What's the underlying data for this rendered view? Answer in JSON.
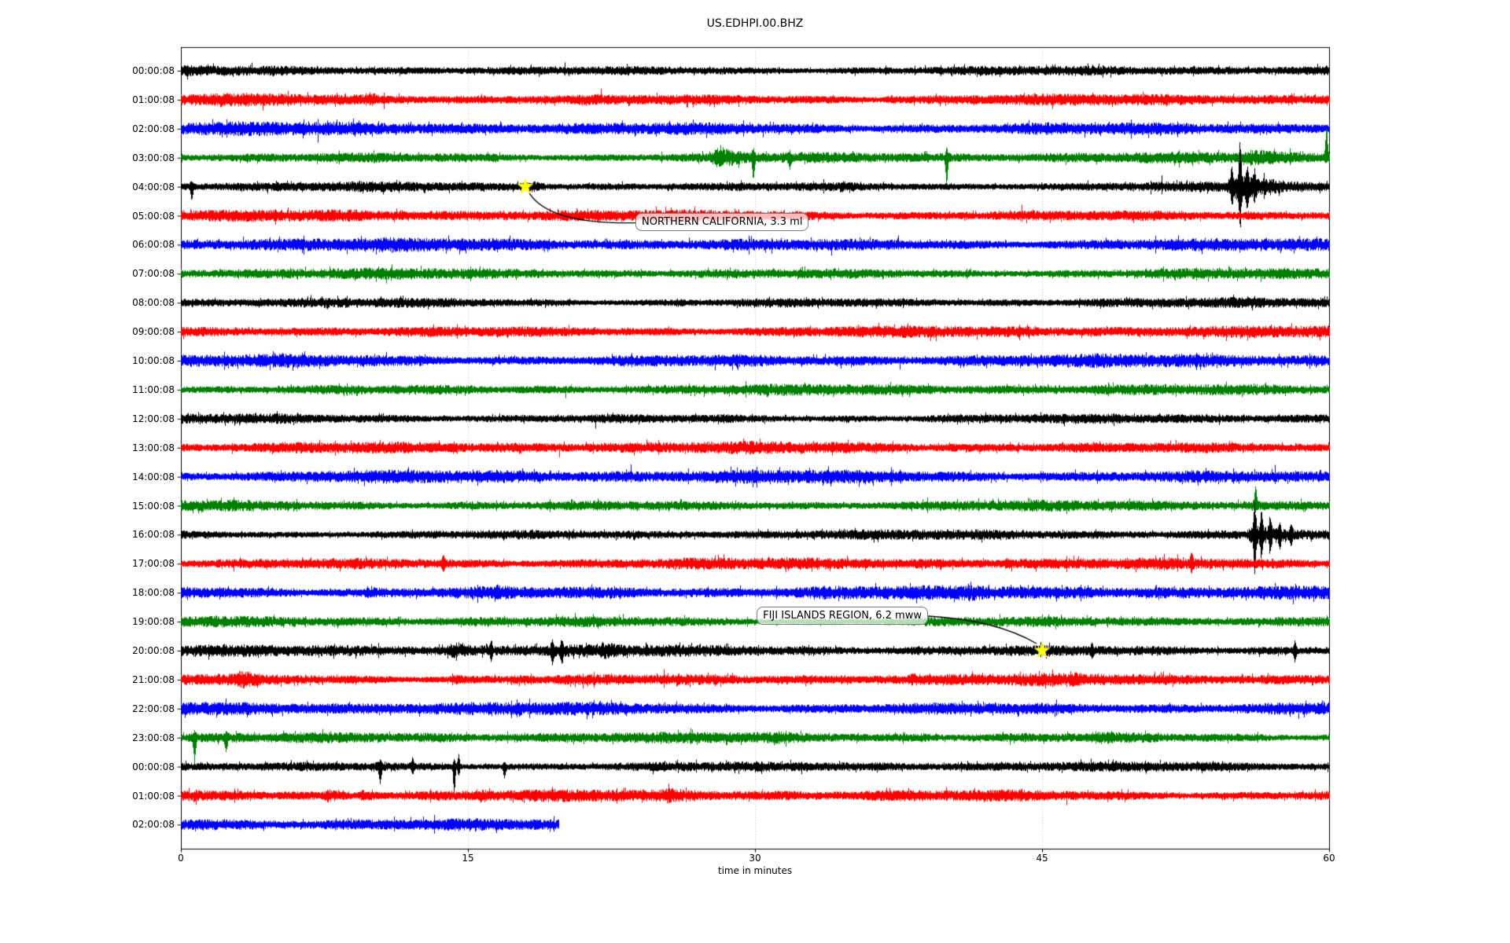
{
  "chart_data": {
    "type": "line",
    "subtype": "seismogram-dayplot",
    "title": "US.EDHPI.00.BHZ",
    "xlabel": "time in minutes",
    "x_ticks": [
      0,
      15,
      30,
      45,
      60
    ],
    "grid_minutes": [
      15,
      30,
      45
    ],
    "x_range_minutes": [
      0,
      60
    ],
    "grid_color": "#b0b0b0",
    "trace_color_cycle": [
      "#000000",
      "#ff0000",
      "#0000ff",
      "#008000"
    ],
    "rows": [
      {
        "label": "00:00:08",
        "color": "#000000",
        "amp": 3.8,
        "seed": 101,
        "end_min": 60,
        "events": []
      },
      {
        "label": "01:00:08",
        "color": "#ff0000",
        "amp": 4.6,
        "seed": 102,
        "end_min": 60,
        "events": [
          {
            "kind": "burst",
            "t": 9.8,
            "dur": 0.7,
            "amp": 1.9
          },
          {
            "kind": "burst",
            "t": 36.8,
            "dur": 1.0,
            "amp": 1.8
          }
        ]
      },
      {
        "label": "02:00:08",
        "color": "#0000ff",
        "amp": 5.2,
        "seed": 103,
        "end_min": 60,
        "events": []
      },
      {
        "label": "03:00:08",
        "color": "#008000",
        "amp": 4.2,
        "seed": 104,
        "end_min": 60,
        "events": [
          {
            "kind": "burst",
            "t": 27.7,
            "dur": 2.6,
            "amp": 2.6
          },
          {
            "kind": "spike",
            "t": 29.9,
            "up": 8,
            "down": 26,
            "w": 3
          },
          {
            "kind": "spike",
            "t": 31.8,
            "up": 5,
            "down": 12,
            "w": 3
          },
          {
            "kind": "spike",
            "t": 40.0,
            "up": 4,
            "down": 32,
            "w": 3
          },
          {
            "kind": "burst",
            "t": 55.5,
            "dur": 3.0,
            "amp": 1.7
          },
          {
            "kind": "spike",
            "t": 59.85,
            "up": 37,
            "down": 4,
            "w": 3
          }
        ]
      },
      {
        "label": "04:00:08",
        "color": "#000000",
        "amp": 3.8,
        "seed": 105,
        "end_min": 60,
        "events": [
          {
            "kind": "spike",
            "t": 0.55,
            "up": 5,
            "down": 16,
            "w": 3
          },
          {
            "kind": "burst",
            "t": 18.0,
            "dur": 1.6,
            "amp": 2.3
          },
          {
            "kind": "burst",
            "t": 25.4,
            "dur": 0.6,
            "amp": 1.4
          },
          {
            "kind": "burst",
            "t": 34.4,
            "dur": 0.8,
            "amp": 1.5
          },
          {
            "kind": "burst",
            "t": 54.6,
            "dur": 4.0,
            "amp": 3.5
          },
          {
            "kind": "spike",
            "t": 54.9,
            "up": 16,
            "down": 14,
            "w": 3
          },
          {
            "kind": "spike",
            "t": 55.33,
            "up": 44,
            "down": 48,
            "w": 3
          },
          {
            "kind": "spike",
            "t": 55.7,
            "up": 18,
            "down": 20,
            "w": 3
          },
          {
            "kind": "spike",
            "t": 56.1,
            "up": 12,
            "down": 12,
            "w": 3
          }
        ]
      },
      {
        "label": "05:00:08",
        "color": "#ff0000",
        "amp": 4.6,
        "seed": 106,
        "end_min": 60,
        "events": []
      },
      {
        "label": "06:00:08",
        "color": "#0000ff",
        "amp": 5.2,
        "seed": 107,
        "end_min": 60,
        "events": []
      },
      {
        "label": "07:00:08",
        "color": "#008000",
        "amp": 4.2,
        "seed": 108,
        "end_min": 60,
        "events": []
      },
      {
        "label": "08:00:08",
        "color": "#000000",
        "amp": 3.8,
        "seed": 109,
        "end_min": 60,
        "events": [
          {
            "kind": "burst",
            "t": 25.7,
            "dur": 1.0,
            "amp": 1.5
          }
        ]
      },
      {
        "label": "09:00:08",
        "color": "#ff0000",
        "amp": 4.6,
        "seed": 110,
        "end_min": 60,
        "events": []
      },
      {
        "label": "10:00:08",
        "color": "#0000ff",
        "amp": 5.2,
        "seed": 111,
        "end_min": 60,
        "events": []
      },
      {
        "label": "11:00:08",
        "color": "#008000",
        "amp": 4.2,
        "seed": 112,
        "end_min": 60,
        "events": []
      },
      {
        "label": "12:00:08",
        "color": "#000000",
        "amp": 3.8,
        "seed": 113,
        "end_min": 60,
        "events": []
      },
      {
        "label": "13:00:08",
        "color": "#ff0000",
        "amp": 4.6,
        "seed": 114,
        "end_min": 60,
        "events": []
      },
      {
        "label": "14:00:08",
        "color": "#0000ff",
        "amp": 5.2,
        "seed": 115,
        "end_min": 60,
        "events": []
      },
      {
        "label": "15:00:08",
        "color": "#008000",
        "amp": 4.2,
        "seed": 116,
        "end_min": 60,
        "events": [
          {
            "kind": "spike",
            "t": 56.15,
            "up": 24,
            "down": 4,
            "w": 3
          }
        ]
      },
      {
        "label": "16:00:08",
        "color": "#000000",
        "amp": 3.8,
        "seed": 117,
        "end_min": 60,
        "events": [
          {
            "kind": "burst",
            "t": 55.7,
            "dur": 3.2,
            "amp": 3.2
          },
          {
            "kind": "spike",
            "t": 56.1,
            "up": 30,
            "down": 46,
            "w": 3
          },
          {
            "kind": "spike",
            "t": 56.45,
            "up": 22,
            "down": 24,
            "w": 3
          },
          {
            "kind": "spike",
            "t": 56.9,
            "up": 16,
            "down": 18,
            "w": 3
          },
          {
            "kind": "spike",
            "t": 57.4,
            "up": 12,
            "down": 14,
            "w": 3
          },
          {
            "kind": "spike",
            "t": 58.0,
            "up": 9,
            "down": 10,
            "w": 3
          }
        ]
      },
      {
        "label": "17:00:08",
        "color": "#ff0000",
        "amp": 4.6,
        "seed": 118,
        "end_min": 60,
        "events": [
          {
            "kind": "spike",
            "t": 13.7,
            "up": 8,
            "down": 9,
            "w": 3
          },
          {
            "kind": "burst",
            "t": 43.0,
            "dur": 0.6,
            "amp": 1.4
          },
          {
            "kind": "spike",
            "t": 52.8,
            "up": 9,
            "down": 7,
            "w": 3
          }
        ]
      },
      {
        "label": "18:00:08",
        "color": "#0000ff",
        "amp": 5.4,
        "seed": 119,
        "end_min": 60,
        "events": [
          {
            "kind": "burst",
            "t": 9.6,
            "dur": 1.0,
            "amp": 1.5
          },
          {
            "kind": "burst",
            "t": 16.4,
            "dur": 1.0,
            "amp": 1.4
          },
          {
            "kind": "burst",
            "t": 33.0,
            "dur": 1.2,
            "amp": 1.35
          },
          {
            "kind": "burst",
            "t": 41.0,
            "dur": 1.0,
            "amp": 1.3
          },
          {
            "kind": "burst",
            "t": 47.0,
            "dur": 1.0,
            "amp": 1.3
          }
        ]
      },
      {
        "label": "19:00:08",
        "color": "#008000",
        "amp": 4.2,
        "seed": 120,
        "end_min": 60,
        "events": []
      },
      {
        "label": "20:00:08",
        "color": "#000000",
        "amp": 4.6,
        "seed": 121,
        "end_min": 60,
        "events": [
          {
            "kind": "burst",
            "t": 13.8,
            "dur": 2.2,
            "amp": 1.7
          },
          {
            "kind": "spike",
            "t": 16.2,
            "up": 9,
            "down": 11,
            "w": 3
          },
          {
            "kind": "spike",
            "t": 19.4,
            "up": 10,
            "down": 12,
            "w": 3
          },
          {
            "kind": "spike",
            "t": 19.9,
            "up": 8,
            "down": 14,
            "w": 3
          },
          {
            "kind": "burst",
            "t": 21.8,
            "dur": 1.6,
            "amp": 1.5
          },
          {
            "kind": "spike",
            "t": 47.6,
            "up": 6,
            "down": 8,
            "w": 3
          },
          {
            "kind": "spike",
            "t": 58.2,
            "up": 10,
            "down": 12,
            "w": 3
          }
        ]
      },
      {
        "label": "21:00:08",
        "color": "#ff0000",
        "amp": 4.6,
        "seed": 122,
        "end_min": 60,
        "events": [
          {
            "kind": "burst",
            "t": 2.8,
            "dur": 1.6,
            "amp": 1.9
          },
          {
            "kind": "burst",
            "t": 14.1,
            "dur": 1.2,
            "amp": 1.7
          },
          {
            "kind": "burst",
            "t": 17.2,
            "dur": 1.0,
            "amp": 1.6
          },
          {
            "kind": "burst",
            "t": 25.8,
            "dur": 1.0,
            "amp": 1.6
          },
          {
            "kind": "burst",
            "t": 32.5,
            "dur": 0.8,
            "amp": 1.5
          },
          {
            "kind": "burst",
            "t": 38.0,
            "dur": 1.0,
            "amp": 1.5
          },
          {
            "kind": "burst",
            "t": 46.4,
            "dur": 0.8,
            "amp": 1.5
          }
        ]
      },
      {
        "label": "22:00:08",
        "color": "#0000ff",
        "amp": 5.2,
        "seed": 123,
        "end_min": 60,
        "events": []
      },
      {
        "label": "23:00:08",
        "color": "#008000",
        "amp": 4.2,
        "seed": 124,
        "end_min": 60,
        "events": [
          {
            "kind": "spike",
            "t": 0.7,
            "up": 4,
            "down": 30,
            "w": 3
          },
          {
            "kind": "spike",
            "t": 2.35,
            "up": 3,
            "down": 16,
            "w": 3
          },
          {
            "kind": "burst",
            "t": 31.0,
            "dur": 1.0,
            "amp": 1.4
          },
          {
            "kind": "burst",
            "t": 38.5,
            "dur": 1.2,
            "amp": 1.5
          },
          {
            "kind": "burst",
            "t": 47.5,
            "dur": 2.5,
            "amp": 1.5
          }
        ]
      },
      {
        "label": "00:00:08",
        "color": "#000000",
        "amp": 3.8,
        "seed": 125,
        "end_min": 60,
        "events": [
          {
            "kind": "burst",
            "t": 9.9,
            "dur": 1.2,
            "amp": 1.5
          },
          {
            "kind": "spike",
            "t": 10.4,
            "up": 5,
            "down": 18,
            "w": 3
          },
          {
            "kind": "spike",
            "t": 12.1,
            "up": 9,
            "down": 6,
            "w": 3
          },
          {
            "kind": "spike",
            "t": 14.27,
            "up": 8,
            "down": 36,
            "w": 2.5
          },
          {
            "kind": "spike",
            "t": 14.5,
            "up": 14,
            "down": 10,
            "w": 2.5
          },
          {
            "kind": "spike",
            "t": 16.9,
            "up": 4,
            "down": 13,
            "w": 3
          }
        ]
      },
      {
        "label": "01:00:08",
        "color": "#ff0000",
        "amp": 4.6,
        "seed": 126,
        "end_min": 60,
        "events": [
          {
            "kind": "burst",
            "t": 7.5,
            "dur": 1.3,
            "amp": 1.8
          },
          {
            "kind": "burst",
            "t": 9.3,
            "dur": 1.6,
            "amp": 2.0
          },
          {
            "kind": "burst",
            "t": 15.5,
            "dur": 0.9,
            "amp": 1.7
          },
          {
            "kind": "burst",
            "t": 25.3,
            "dur": 1.1,
            "amp": 1.6
          }
        ]
      },
      {
        "label": "02:00:08",
        "color": "#0000ff",
        "amp": 5.2,
        "seed": 127,
        "end_min": 19.73,
        "events": []
      }
    ],
    "annotations": [
      {
        "label": "NORTHERN CALIFORNIA, 3.3 ml",
        "row_index": 4,
        "event_minute": 18,
        "marker": "star-icon",
        "marker_color": "#ffff00"
      },
      {
        "label": "FIJI ISLANDS REGION, 6.2 mww",
        "row_index": 20,
        "event_minute": 45,
        "marker": "star-icon",
        "marker_color": "#ffff00"
      }
    ]
  }
}
